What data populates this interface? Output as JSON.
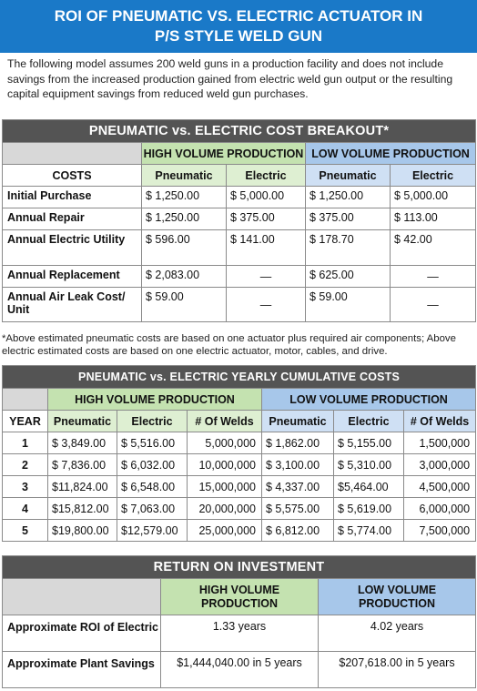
{
  "title": {
    "line1": "ROI OF PNEUMATIC VS. ELECTRIC ACTUATOR IN",
    "line2": "P/S STYLE WELD GUN"
  },
  "intro": "The following model assumes 200 weld guns in a production facility and does not include savings from the increased production gained from electric weld gun output or the resulting capital equipment savings from reduced weld gun purchases.",
  "breakout": {
    "banner": "PNEUMATIC vs. ELECTRIC COST BREAKOUT*",
    "high_volume": "HIGH VOLUME PRODUCTION",
    "low_volume": "LOW VOLUME PRODUCTION",
    "costs_header": "COSTS",
    "col_pneumatic": "Pneumatic",
    "col_electric": "Electric",
    "rows": [
      {
        "label": "Initial Purchase",
        "hv_p": "$ 1,250.00",
        "hv_e": "$ 5,000.00",
        "lv_p": "$ 1,250.00",
        "lv_e": "$ 5,000.00"
      },
      {
        "label": "Annual Repair",
        "hv_p": "$ 1,250.00",
        "hv_e": "$   375.00",
        "lv_p": "$   375.00",
        "lv_e": "$   113.00"
      },
      {
        "label": "Annual Electric Utility",
        "hv_p": "$   596.00",
        "hv_e": "$   141.00",
        "lv_p": "$   178.70",
        "lv_e": "$     42.00"
      },
      {
        "label": "Annual Replacement",
        "hv_p": "$ 2,083.00",
        "hv_e": "—",
        "lv_p": "$   625.00",
        "lv_e": "—"
      },
      {
        "label": "Annual Air Leak Cost/ Unit",
        "hv_p": "$     59.00",
        "hv_e": "—",
        "lv_p": "$     59.00",
        "lv_e": "—"
      }
    ],
    "footnote": "*Above estimated pneumatic costs are based on one actuator plus required air components; Above electric estimated costs are based on one electric actuator, motor, cables, and drive."
  },
  "cumulative": {
    "banner": "PNEUMATIC vs. ELECTRIC YEARLY CUMULATIVE COSTS",
    "high_volume": "HIGH VOLUME PRODUCTION",
    "low_volume": "LOW VOLUME PRODUCTION",
    "col_year": "YEAR",
    "col_pneumatic": "Pneumatic",
    "col_electric": "Electric",
    "col_welds": "# Of Welds",
    "rows": [
      {
        "year": "1",
        "hv_p": "$ 3,849.00",
        "hv_e": "$ 5,516.00",
        "hv_w": "5,000,000",
        "lv_p": "$ 1,862.00",
        "lv_e": "$ 5,155.00",
        "lv_w": "1,500,000"
      },
      {
        "year": "2",
        "hv_p": "$ 7,836.00",
        "hv_e": "$ 6,032.00",
        "hv_w": "10,000,000",
        "lv_p": "$ 3,100.00",
        "lv_e": "$ 5,310.00",
        "lv_w": "3,000,000"
      },
      {
        "year": "3",
        "hv_p": "$11,824.00",
        "hv_e": "$ 6,548.00",
        "hv_w": "15,000,000",
        "lv_p": "$ 4,337.00",
        "lv_e": "$5,464.00",
        "lv_w": "4,500,000"
      },
      {
        "year": "4",
        "hv_p": "$15,812.00",
        "hv_e": "$ 7,063.00",
        "hv_w": "20,000,000",
        "lv_p": "$ 5,575.00",
        "lv_e": "$ 5,619.00",
        "lv_w": "6,000,000"
      },
      {
        "year": "5",
        "hv_p": "$19,800.00",
        "hv_e": "$12,579.00",
        "hv_w": "25,000,000",
        "lv_p": "$ 6,812.00",
        "lv_e": "$ 5,774.00",
        "lv_w": "7,500,000"
      }
    ]
  },
  "roi": {
    "banner": "RETURN ON INVESTMENT",
    "high_volume": "HIGH VOLUME PRODUCTION",
    "low_volume": "LOW VOLUME PRODUCTION",
    "rows": [
      {
        "label": "Approximate ROI of Electric",
        "hv": "1.33 years",
        "lv": "4.02 years"
      },
      {
        "label": "Approximate Plant Savings",
        "hv": "$1,444,040.00 in 5 years",
        "lv": "$207,618.00 in 5 years"
      }
    ]
  },
  "colors": {
    "title_blue": "#1a79c8",
    "banner_gray": "#545454",
    "high_volume_green": "#c4e2b0",
    "low_volume_blue": "#a7c7ea"
  }
}
